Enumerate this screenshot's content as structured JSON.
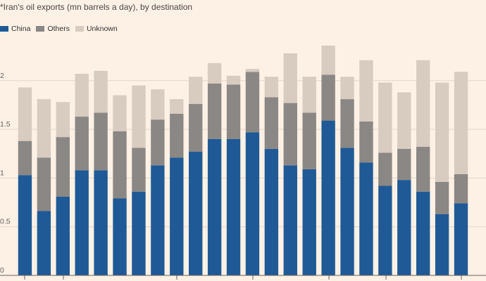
{
  "chart_data": {
    "type": "bar",
    "stacked": true,
    "title": "*Iran's oil exports (mn barrels a day), by destination",
    "xlabel": "",
    "ylabel": "",
    "ylim": [
      0,
      2.4
    ],
    "yticks": [
      0,
      0.5,
      1,
      1.5,
      2
    ],
    "ytick_labels": [
      "0",
      "0.5",
      "1",
      "1.5",
      "2"
    ],
    "grid": true,
    "legend_position": "top-left",
    "series": [
      {
        "name": "China",
        "color": "#1f5a96",
        "values": [
          1.03,
          0.66,
          0.81,
          1.08,
          1.08,
          0.79,
          0.86,
          1.13,
          1.21,
          1.27,
          1.4,
          1.4,
          1.47,
          1.3,
          1.13,
          1.09,
          1.59,
          1.31,
          1.16,
          0.92,
          0.98,
          0.86,
          0.63,
          0.74
        ]
      },
      {
        "name": "Others",
        "color": "#8b8784",
        "values": [
          0.35,
          0.55,
          0.61,
          0.55,
          0.59,
          0.69,
          0.45,
          0.47,
          0.45,
          0.49,
          0.57,
          0.56,
          0.62,
          0.53,
          0.64,
          0.58,
          0.47,
          0.5,
          0.42,
          0.34,
          0.32,
          0.46,
          0.33,
          0.3
        ]
      },
      {
        "name": "Unknown",
        "color": "#d8cbc0",
        "values": [
          0.55,
          0.6,
          0.36,
          0.44,
          0.43,
          0.37,
          0.64,
          0.31,
          0.15,
          0.28,
          0.21,
          0.09,
          0.03,
          0.21,
          0.51,
          0.37,
          0.3,
          0.23,
          0.63,
          0.72,
          0.58,
          0.89,
          1.02,
          1.05
        ]
      }
    ]
  }
}
